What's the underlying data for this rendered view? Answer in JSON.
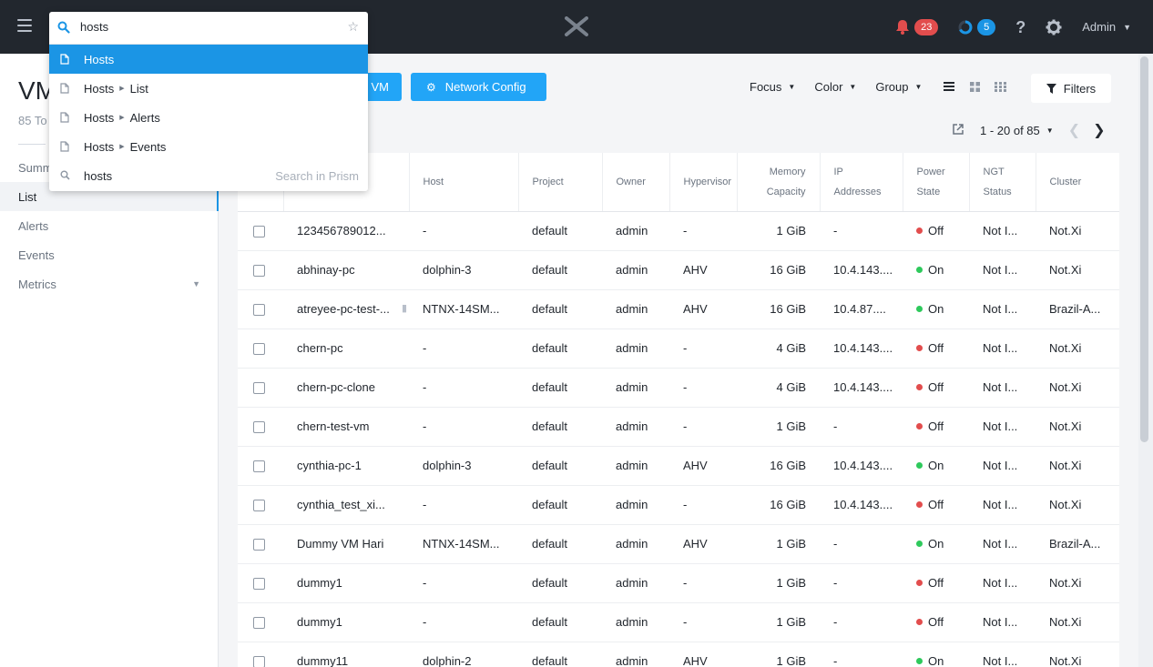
{
  "topbar": {
    "alerts_count": "23",
    "tasks_count": "5",
    "help_label": "?",
    "user_label": "Admin"
  },
  "sidebar": {
    "title": "VM",
    "subtitle": "85 To",
    "items": [
      {
        "label": "Summ"
      },
      {
        "label": "List"
      },
      {
        "label": "Alerts"
      },
      {
        "label": "Events"
      },
      {
        "label": "Metrics"
      }
    ]
  },
  "actions": {
    "create_vm_label": "VM",
    "network_config_label": "Network Config"
  },
  "toolbar": {
    "focus_label": "Focus",
    "color_label": "Color",
    "group_label": "Group",
    "filters_label": "Filters"
  },
  "pager": {
    "range": "1 - 20 of 85"
  },
  "table": {
    "headers": {
      "host": "Host",
      "project": "Project",
      "owner": "Owner",
      "hypervisor": "Hypervisor",
      "memory_1": "Memory",
      "memory_2": "Capacity",
      "ip_1": "IP",
      "ip_2": "Addresses",
      "power_1": "Power",
      "power_2": "State",
      "ngt_1": "NGT",
      "ngt_2": "Status",
      "cluster": "Cluster"
    },
    "rows": [
      {
        "name": "123456789012...",
        "host": "-",
        "project": "default",
        "owner": "admin",
        "hypervisor": "-",
        "memory": "1 GiB",
        "ip": "-",
        "power": "Off",
        "ngt": "Not I...",
        "cluster": "Not.Xi"
      },
      {
        "name": "abhinay-pc",
        "host": "dolphin-3",
        "project": "default",
        "owner": "admin",
        "hypervisor": "AHV",
        "memory": "16 GiB",
        "ip": "10.4.143....",
        "power": "On",
        "ngt": "Not I...",
        "cluster": "Not.Xi"
      },
      {
        "name": "atreyee-pc-test-...",
        "host": "NTNX-14SM...",
        "project": "default",
        "owner": "admin",
        "hypervisor": "AHV",
        "memory": "16 GiB",
        "ip": "10.4.87....",
        "power": "On",
        "ngt": "Not I...",
        "cluster": "Brazil-A..."
      },
      {
        "name": "chern-pc",
        "host": "-",
        "project": "default",
        "owner": "admin",
        "hypervisor": "-",
        "memory": "4 GiB",
        "ip": "10.4.143....",
        "power": "Off",
        "ngt": "Not I...",
        "cluster": "Not.Xi"
      },
      {
        "name": "chern-pc-clone",
        "host": "-",
        "project": "default",
        "owner": "admin",
        "hypervisor": "-",
        "memory": "4 GiB",
        "ip": "10.4.143....",
        "power": "Off",
        "ngt": "Not I...",
        "cluster": "Not.Xi"
      },
      {
        "name": "chern-test-vm",
        "host": "-",
        "project": "default",
        "owner": "admin",
        "hypervisor": "-",
        "memory": "1 GiB",
        "ip": "-",
        "power": "Off",
        "ngt": "Not I...",
        "cluster": "Not.Xi"
      },
      {
        "name": "cynthia-pc-1",
        "host": "dolphin-3",
        "project": "default",
        "owner": "admin",
        "hypervisor": "AHV",
        "memory": "16 GiB",
        "ip": "10.4.143....",
        "power": "On",
        "ngt": "Not I...",
        "cluster": "Not.Xi"
      },
      {
        "name": "cynthia_test_xi...",
        "host": "-",
        "project": "default",
        "owner": "admin",
        "hypervisor": "-",
        "memory": "16 GiB",
        "ip": "10.4.143....",
        "power": "Off",
        "ngt": "Not I...",
        "cluster": "Not.Xi"
      },
      {
        "name": "Dummy VM Hari",
        "host": "NTNX-14SM...",
        "project": "default",
        "owner": "admin",
        "hypervisor": "AHV",
        "memory": "1 GiB",
        "ip": "-",
        "power": "On",
        "ngt": "Not I...",
        "cluster": "Brazil-A..."
      },
      {
        "name": "dummy1",
        "host": "-",
        "project": "default",
        "owner": "admin",
        "hypervisor": "-",
        "memory": "1 GiB",
        "ip": "-",
        "power": "Off",
        "ngt": "Not I...",
        "cluster": "Not.Xi"
      },
      {
        "name": "dummy1",
        "host": "-",
        "project": "default",
        "owner": "admin",
        "hypervisor": "-",
        "memory": "1 GiB",
        "ip": "-",
        "power": "Off",
        "ngt": "Not I...",
        "cluster": "Not.Xi"
      },
      {
        "name": "dummy11",
        "host": "dolphin-2",
        "project": "default",
        "owner": "admin",
        "hypervisor": "AHV",
        "memory": "1 GiB",
        "ip": "-",
        "power": "On",
        "ngt": "Not I...",
        "cluster": "Not.Xi"
      }
    ]
  },
  "search": {
    "query": "hosts",
    "results": [
      {
        "label": "Hosts"
      },
      {
        "label": "Hosts",
        "sub": "List"
      },
      {
        "label": "Hosts",
        "sub": "Alerts"
      },
      {
        "label": "Hosts",
        "sub": "Events"
      },
      {
        "label": "hosts",
        "hint": "Search in Prism"
      }
    ]
  },
  "colors": {
    "topbar_bg": "#22272e",
    "accent_blue": "#1b95e5",
    "button_blue": "#22a5f7",
    "power_on": "#2ec95c",
    "power_off": "#e24d4d",
    "badge_red": "#e24d4d"
  },
  "icons": {
    "menu": "hamburger-icon",
    "logo": "nutanix-x-logo",
    "alerts": "bell-icon",
    "tasks": "circle-progress-icon",
    "help": "question-icon",
    "settings": "gear-icon",
    "search": "search-icon",
    "star": "star-icon",
    "filter": "funnel-icon",
    "export": "external-link-icon",
    "bookmark": "bookmark-icon",
    "page": "file-icon"
  }
}
